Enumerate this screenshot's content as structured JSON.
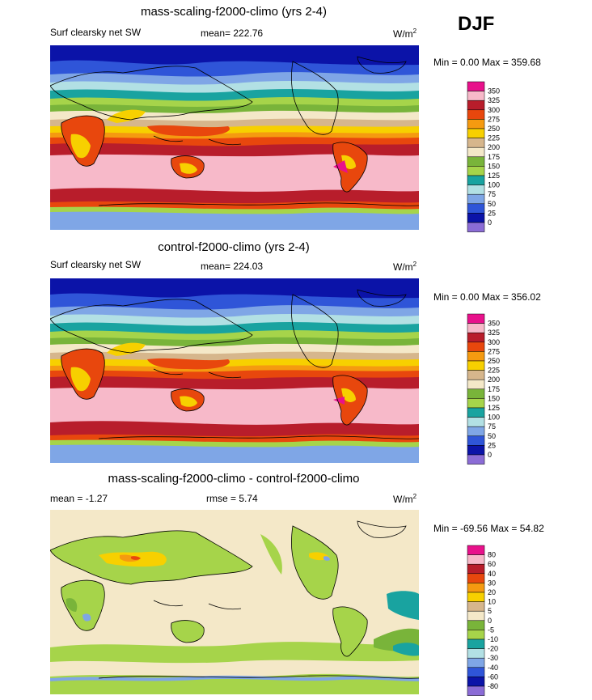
{
  "season": "DJF",
  "panels": [
    {
      "id": "mass",
      "title": "mass-scaling-f2000-climo (yrs 2-4)",
      "left_label": "Surf clearsky net SW",
      "stat_label": "mean= 222.76",
      "units_base": "W/m",
      "units_sup": "2",
      "minmax": "Min =   0.00 Max = 359.68",
      "levels": [
        "350",
        "325",
        "300",
        "275",
        "250",
        "225",
        "200",
        "175",
        "150",
        "125",
        "100",
        "75",
        "50",
        "25",
        "0"
      ]
    },
    {
      "id": "control",
      "title": "control-f2000-climo (yrs 2-4)",
      "left_label": "Surf clearsky net SW",
      "stat_label": "mean= 224.03",
      "units_base": "W/m",
      "units_sup": "2",
      "minmax": "Min =   0.00 Max = 356.02",
      "levels": [
        "350",
        "325",
        "300",
        "275",
        "250",
        "225",
        "200",
        "175",
        "150",
        "125",
        "100",
        "75",
        "50",
        "25",
        "0"
      ]
    },
    {
      "id": "diff",
      "title": "mass-scaling-f2000-climo - control-f2000-climo",
      "left_label": "mean =  -1.27",
      "stat_label": "rmse =   5.74",
      "units_base": "W/m",
      "units_sup": "2",
      "minmax": "Min = -69.56 Max =  54.82",
      "levels": [
        "80",
        "60",
        "40",
        "30",
        "20",
        "10",
        "5",
        "0",
        "-5",
        "-10",
        "-20",
        "-30",
        "-40",
        "-60",
        "-80"
      ]
    }
  ],
  "colors": {
    "scale": [
      "#e8118b",
      "#f7b9c9",
      "#b81d2b",
      "#e8470d",
      "#f59a10",
      "#f7d000",
      "#d6b68c",
      "#f4e8c8",
      "#79b43a",
      "#a6d44a",
      "#19a3a0",
      "#b2e0e4",
      "#7fa6e6",
      "#2f55d8",
      "#0b13a8",
      "#8b6cd6"
    ],
    "coast": "#000000"
  }
}
